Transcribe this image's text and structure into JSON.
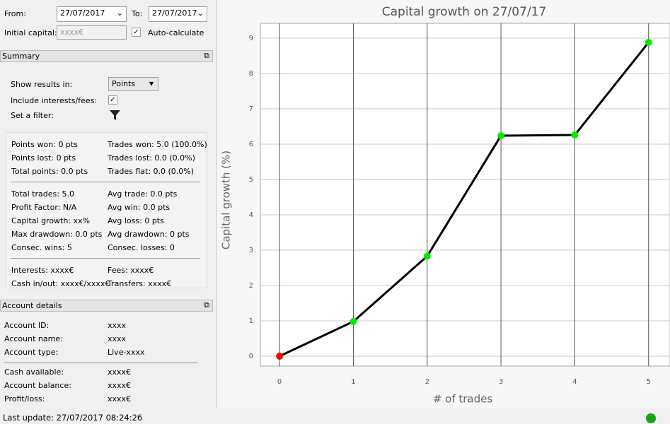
{
  "form": {
    "from_label": "From:",
    "from_value": "27/07/2017",
    "to_label": "To:",
    "to_value": "27/07/2017",
    "initial_capital_label": "Initial capital:",
    "initial_capital_value": "xxxx€",
    "auto_calculate_label": "Auto-calculate"
  },
  "summary": {
    "title": "Summary",
    "show_results_label": "Show results in:",
    "show_results_value": "Points",
    "include_fees_label": "Include interests/fees:",
    "filter_label": "Set a filter:",
    "stats": [
      [
        [
          "Points won: 0 pts",
          "Trades won: 5.0 (100.0%)"
        ],
        [
          "Points lost: 0 pts",
          "Trades lost: 0.0 (0.0%)"
        ],
        [
          "Total points: 0.0 pts",
          "Trades flat: 0.0 (0.0%)"
        ]
      ],
      [
        [
          "Total trades: 5.0",
          "Avg trade: 0.0 pts"
        ],
        [
          "Profit Factor: N/A",
          "Avg win: 0.0 pts"
        ],
        [
          "Capital growth: xx%",
          "Avg loss: 0 pts"
        ],
        [
          "Max drawdown: 0.0 pts",
          "Avg drawdown: 0 pts"
        ],
        [
          "Consec. wins: 5",
          "Consec. losses: 0"
        ]
      ],
      [
        [
          "Interests: xxxx€",
          "Fees: xxxx€"
        ],
        [
          "Cash in/out: xxxx€/xxxx€",
          "Transfers: xxxx€"
        ]
      ]
    ]
  },
  "account_details": {
    "title": "Account details",
    "groups": [
      [
        [
          "Account ID:",
          "xxxx"
        ],
        [
          "Account name:",
          "xxxx"
        ],
        [
          "Account type:",
          "Live-xxxx"
        ]
      ],
      [
        [
          "Cash available:",
          "xxxx€"
        ],
        [
          "Account balance:",
          "xxxx€"
        ],
        [
          "Profit/loss:",
          "xxxx€"
        ]
      ]
    ]
  },
  "status": {
    "last_update": "Last update: 27/07/2017 08:24:26"
  },
  "chart_data": {
    "type": "line",
    "title": "Capital growth on 27/07/17",
    "x_label": "# of trades",
    "y_label": "Capital growth (%)",
    "x": [
      0,
      1,
      2,
      3,
      4,
      5
    ],
    "series": [
      {
        "name": "Capital growth",
        "color": "#000000",
        "values": [
          0,
          0.98,
          2.83,
          6.24,
          6.26,
          8.88
        ],
        "marker_colors": [
          "#ff0000",
          "#00ee00",
          "#00ee00",
          "#00ee00",
          "#00ee00",
          "#00ee00"
        ]
      }
    ],
    "xlim": [
      -0.26,
      5.29
    ],
    "ylim": [
      -0.28,
      9.42
    ],
    "xticks": [
      0,
      1,
      2,
      3,
      4,
      5
    ],
    "yticks": [
      0,
      1,
      2,
      3,
      4,
      5,
      6,
      7,
      8,
      9
    ],
    "grid": true
  }
}
